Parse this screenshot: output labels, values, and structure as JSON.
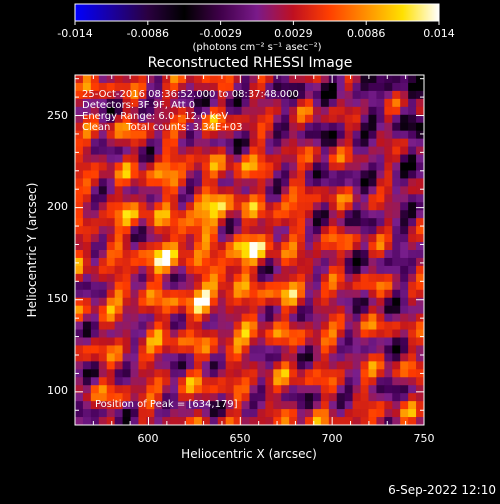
{
  "chart_data": {
    "type": "heatmap",
    "title": "Reconstructed RHESSI Image",
    "xlabel": "Heliocentric X (arcsec)",
    "ylabel": "Heliocentric Y (arcsec)",
    "xlim": [
      560,
      750
    ],
    "ylim": [
      82,
      272
    ],
    "x_ticks": [
      "600",
      "650",
      "700",
      "750"
    ],
    "y_ticks": [
      "100",
      "150",
      "200",
      "250"
    ],
    "colorbar": {
      "ticks": [
        "-0.014",
        "-0.0086",
        "-0.0029",
        "0.0029",
        "0.0086",
        "0.014"
      ],
      "units": "(photons cm⁻² s⁻¹ asec⁻²)",
      "range": [
        -0.014,
        0.014
      ],
      "colors": [
        "#0000ff",
        "#1a00a0",
        "#2a0040",
        "#000000",
        "#40004a",
        "#7a1a8a",
        "#c01020",
        "#ff4000",
        "#ff9000",
        "#ffe000",
        "#ffffff"
      ]
    },
    "peak": {
      "x": 634,
      "y": 179
    },
    "annotations": {
      "time": "25-Oct-2016 08:36:52.000 to 08:37:48.000",
      "detectors": "Detectors: 3F 9F, Att 0",
      "energy": "Energy Range: 6.0 - 12.0 keV",
      "clean": "Clean     Total counts: 3.34E+03",
      "peak_label": "Position of Peak = [634,179]"
    }
  },
  "footer": {
    "date": "6-Sep-2022 12:10"
  }
}
